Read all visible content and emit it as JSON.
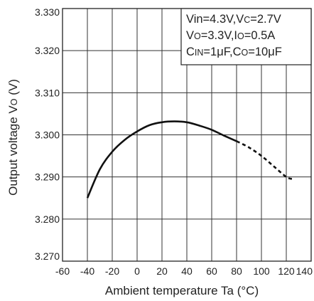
{
  "chart_data": {
    "type": "line",
    "xlabel": "Ambient temperature Ta (°C)",
    "ylabel": {
      "main": "Output voltage V",
      "sub": "O",
      "unit": " (V)"
    },
    "xlim": [
      -60,
      140
    ],
    "ylim": [
      3.27,
      3.33
    ],
    "x_ticks": [
      -60,
      -40,
      -20,
      0,
      20,
      40,
      60,
      80,
      100,
      120,
      140
    ],
    "x_tick_labels": [
      "-60",
      "-40",
      "-20",
      "0",
      "20",
      "40",
      "60",
      "80",
      "100",
      "120",
      "140"
    ],
    "y_ticks": [
      3.27,
      3.28,
      3.29,
      3.3,
      3.31,
      3.32,
      3.33
    ],
    "y_tick_labels": [
      "3.270",
      "3.280",
      "3.290",
      "3.300",
      "3.310",
      "3.320",
      "3.330"
    ],
    "grid": true,
    "legend_position": "top-right",
    "conditions": [
      [
        {
          "t": "Vin=4.3V,V"
        },
        {
          "t": "C",
          "sub": true
        },
        {
          "t": "=2.7V"
        }
      ],
      [
        {
          "t": "V"
        },
        {
          "t": "O",
          "sub": true
        },
        {
          "t": "=3.3V,I"
        },
        {
          "t": "O",
          "sub": true
        },
        {
          "t": "=0.5A"
        }
      ],
      [
        {
          "t": "C"
        },
        {
          "t": "IN",
          "sub": true
        },
        {
          "t": "=1μF,C"
        },
        {
          "t": "O",
          "sub": true
        },
        {
          "t": "=10μF"
        }
      ]
    ],
    "series": [
      {
        "style": "solid",
        "x": [
          -40,
          -30,
          -20,
          -10,
          0,
          10,
          20,
          30,
          40,
          50,
          60,
          70,
          80
        ],
        "y": [
          3.285,
          3.2918,
          3.296,
          3.2988,
          3.3008,
          3.3023,
          3.303,
          3.3032,
          3.303,
          3.3022,
          3.3012,
          3.2998,
          3.2985
        ]
      },
      {
        "style": "dashed",
        "x": [
          80,
          90,
          100,
          110,
          120,
          125
        ],
        "y": [
          3.2985,
          3.297,
          3.295,
          3.2925,
          3.29,
          3.2895
        ]
      }
    ]
  }
}
